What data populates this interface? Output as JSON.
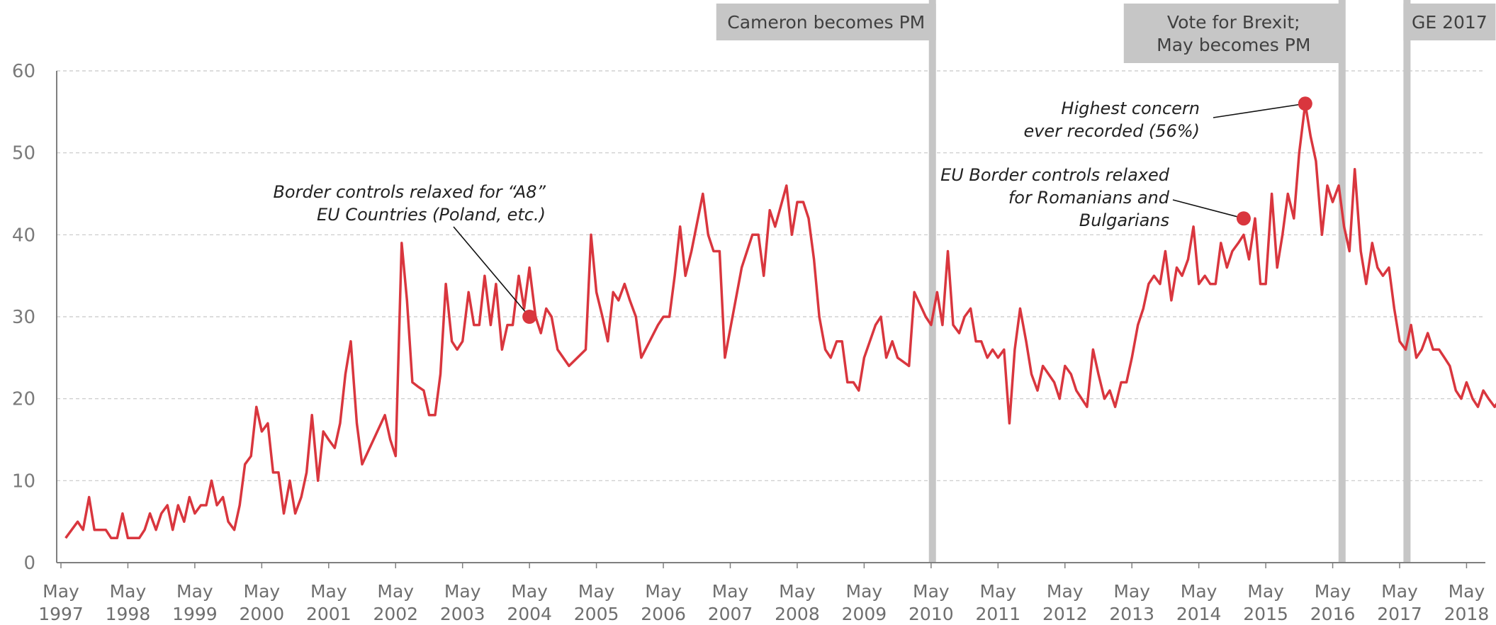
{
  "chart_data": {
    "type": "line",
    "title": "",
    "xlabel": "",
    "ylabel": "",
    "ylim": [
      0,
      60
    ],
    "yticks": [
      0,
      10,
      20,
      30,
      40,
      50,
      60
    ],
    "grid": true,
    "xticks": [
      {
        "top": "May",
        "bottom": "1997",
        "year": 1997.33
      },
      {
        "top": "May",
        "bottom": "1998",
        "year": 1998.33
      },
      {
        "top": "May",
        "bottom": "1999",
        "year": 1999.33
      },
      {
        "top": "May",
        "bottom": "2000",
        "year": 2000.33
      },
      {
        "top": "May",
        "bottom": "2001",
        "year": 2001.33
      },
      {
        "top": "May",
        "bottom": "2002",
        "year": 2002.33
      },
      {
        "top": "May",
        "bottom": "2003",
        "year": 2003.33
      },
      {
        "top": "May",
        "bottom": "2004",
        "year": 2004.33
      },
      {
        "top": "May",
        "bottom": "2005",
        "year": 2005.33
      },
      {
        "top": "May",
        "bottom": "2006",
        "year": 2006.33
      },
      {
        "top": "May",
        "bottom": "2007",
        "year": 2007.33
      },
      {
        "top": "May",
        "bottom": "2008",
        "year": 2008.33
      },
      {
        "top": "May",
        "bottom": "2009",
        "year": 2009.33
      },
      {
        "top": "May",
        "bottom": "2010",
        "year": 2010.33
      },
      {
        "top": "May",
        "bottom": "2011",
        "year": 2011.33
      },
      {
        "top": "May",
        "bottom": "2012",
        "year": 2012.33
      },
      {
        "top": "May",
        "bottom": "2013",
        "year": 2013.33
      },
      {
        "top": "May",
        "bottom": "2014",
        "year": 2014.33
      },
      {
        "top": "May",
        "bottom": "2015",
        "year": 2015.33
      },
      {
        "top": "May",
        "bottom": "2016",
        "year": 2016.33
      },
      {
        "top": "May",
        "bottom": "2017",
        "year": 2017.33
      },
      {
        "top": "May",
        "bottom": "2018",
        "year": 2018.33
      }
    ],
    "series": [
      {
        "color": "#d9363e",
        "values": [
          [
            1997.4,
            3
          ],
          [
            1997.58,
            5
          ],
          [
            1997.66,
            4
          ],
          [
            1997.75,
            8
          ],
          [
            1997.83,
            4
          ],
          [
            1997.92,
            4
          ],
          [
            1998.0,
            4
          ],
          [
            1998.08,
            3
          ],
          [
            1998.17,
            3
          ],
          [
            1998.25,
            6
          ],
          [
            1998.33,
            3
          ],
          [
            1998.42,
            3
          ],
          [
            1998.5,
            3
          ],
          [
            1998.58,
            4
          ],
          [
            1998.66,
            6
          ],
          [
            1998.75,
            4
          ],
          [
            1998.83,
            6
          ],
          [
            1998.92,
            7
          ],
          [
            1999.0,
            4
          ],
          [
            1999.08,
            7
          ],
          [
            1999.17,
            5
          ],
          [
            1999.25,
            8
          ],
          [
            1999.33,
            6
          ],
          [
            1999.42,
            7
          ],
          [
            1999.5,
            7
          ],
          [
            1999.58,
            10
          ],
          [
            1999.66,
            7
          ],
          [
            1999.75,
            8
          ],
          [
            1999.83,
            5
          ],
          [
            1999.92,
            4
          ],
          [
            2000.0,
            7
          ],
          [
            2000.08,
            12
          ],
          [
            2000.17,
            13
          ],
          [
            2000.25,
            19
          ],
          [
            2000.33,
            16
          ],
          [
            2000.42,
            17
          ],
          [
            2000.5,
            11
          ],
          [
            2000.58,
            11
          ],
          [
            2000.66,
            6
          ],
          [
            2000.75,
            10
          ],
          [
            2000.83,
            6
          ],
          [
            2000.92,
            8
          ],
          [
            2001.0,
            11
          ],
          [
            2001.08,
            18
          ],
          [
            2001.17,
            10
          ],
          [
            2001.25,
            16
          ],
          [
            2001.33,
            15
          ],
          [
            2001.42,
            14
          ],
          [
            2001.5,
            17
          ],
          [
            2001.58,
            23
          ],
          [
            2001.66,
            27
          ],
          [
            2001.75,
            17
          ],
          [
            2001.83,
            12
          ],
          [
            2002.17,
            18
          ],
          [
            2002.25,
            15
          ],
          [
            2002.33,
            13
          ],
          [
            2002.42,
            39
          ],
          [
            2002.5,
            32
          ],
          [
            2002.58,
            22
          ],
          [
            2002.66,
            21.5
          ],
          [
            2002.75,
            21
          ],
          [
            2002.83,
            18
          ],
          [
            2002.92,
            18
          ],
          [
            2003.0,
            23
          ],
          [
            2003.08,
            34
          ],
          [
            2003.17,
            27
          ],
          [
            2003.25,
            26
          ],
          [
            2003.33,
            27
          ],
          [
            2003.42,
            33
          ],
          [
            2003.5,
            29
          ],
          [
            2003.58,
            29
          ],
          [
            2003.66,
            35
          ],
          [
            2003.75,
            29
          ],
          [
            2003.83,
            34
          ],
          [
            2003.92,
            26
          ],
          [
            2004.0,
            29
          ],
          [
            2004.08,
            29
          ],
          [
            2004.17,
            35
          ],
          [
            2004.25,
            31
          ],
          [
            2004.33,
            36
          ],
          [
            2004.42,
            30
          ],
          [
            2004.5,
            28
          ],
          [
            2004.58,
            31
          ],
          [
            2004.66,
            30
          ],
          [
            2004.75,
            26
          ],
          [
            2004.92,
            24
          ],
          [
            2005.17,
            26
          ],
          [
            2005.25,
            40
          ],
          [
            2005.33,
            33
          ],
          [
            2005.42,
            30
          ],
          [
            2005.5,
            27
          ],
          [
            2005.58,
            33
          ],
          [
            2005.66,
            32
          ],
          [
            2005.75,
            34
          ],
          [
            2005.83,
            32
          ],
          [
            2005.92,
            30
          ],
          [
            2006.0,
            25
          ],
          [
            2006.25,
            29
          ],
          [
            2006.33,
            30
          ],
          [
            2006.42,
            30
          ],
          [
            2006.5,
            35
          ],
          [
            2006.58,
            41
          ],
          [
            2006.66,
            35
          ],
          [
            2006.75,
            38
          ],
          [
            2006.92,
            45
          ],
          [
            2007.0,
            40
          ],
          [
            2007.08,
            38
          ],
          [
            2007.17,
            38
          ],
          [
            2007.25,
            25
          ],
          [
            2007.5,
            36
          ],
          [
            2007.66,
            40
          ],
          [
            2007.75,
            40
          ],
          [
            2007.83,
            35
          ],
          [
            2007.92,
            43
          ],
          [
            2008.0,
            41
          ],
          [
            2008.17,
            46
          ],
          [
            2008.25,
            40
          ],
          [
            2008.33,
            44
          ],
          [
            2008.42,
            44
          ],
          [
            2008.5,
            42
          ],
          [
            2008.58,
            37
          ],
          [
            2008.66,
            30
          ],
          [
            2008.75,
            26
          ],
          [
            2008.83,
            25
          ],
          [
            2008.92,
            27
          ],
          [
            2009.0,
            27
          ],
          [
            2009.08,
            22
          ],
          [
            2009.17,
            22
          ],
          [
            2009.25,
            21
          ],
          [
            2009.33,
            25
          ],
          [
            2009.5,
            29
          ],
          [
            2009.58,
            30
          ],
          [
            2009.66,
            25
          ],
          [
            2009.75,
            27
          ],
          [
            2009.83,
            25
          ],
          [
            2010.0,
            24
          ],
          [
            2010.08,
            33
          ],
          [
            2010.25,
            30
          ],
          [
            2010.33,
            29
          ],
          [
            2010.42,
            33
          ],
          [
            2010.5,
            29
          ],
          [
            2010.58,
            38
          ],
          [
            2010.66,
            29
          ],
          [
            2010.75,
            28
          ],
          [
            2010.83,
            30
          ],
          [
            2010.92,
            31
          ],
          [
            2011.0,
            27
          ],
          [
            2011.08,
            27
          ],
          [
            2011.17,
            25
          ],
          [
            2011.25,
            26
          ],
          [
            2011.33,
            25
          ],
          [
            2011.42,
            26
          ],
          [
            2011.5,
            17
          ],
          [
            2011.58,
            26
          ],
          [
            2011.66,
            31
          ],
          [
            2011.75,
            27
          ],
          [
            2011.83,
            23
          ],
          [
            2011.92,
            21
          ],
          [
            2012.0,
            24
          ],
          [
            2012.17,
            22
          ],
          [
            2012.25,
            20
          ],
          [
            2012.33,
            24
          ],
          [
            2012.42,
            23
          ],
          [
            2012.5,
            21
          ],
          [
            2012.66,
            19
          ],
          [
            2012.75,
            26
          ],
          [
            2012.83,
            23
          ],
          [
            2012.92,
            20
          ],
          [
            2013.0,
            21
          ],
          [
            2013.08,
            19
          ],
          [
            2013.17,
            22
          ],
          [
            2013.25,
            22
          ],
          [
            2013.33,
            25
          ],
          [
            2013.42,
            29
          ],
          [
            2013.5,
            31
          ],
          [
            2013.58,
            34
          ],
          [
            2013.66,
            35
          ],
          [
            2013.75,
            34
          ],
          [
            2013.83,
            38
          ],
          [
            2013.92,
            32
          ],
          [
            2014.0,
            36
          ],
          [
            2014.08,
            35
          ],
          [
            2014.17,
            37
          ],
          [
            2014.25,
            41
          ],
          [
            2014.33,
            34
          ],
          [
            2014.42,
            35
          ],
          [
            2014.5,
            34
          ],
          [
            2014.58,
            34
          ],
          [
            2014.66,
            39
          ],
          [
            2014.75,
            36
          ],
          [
            2014.83,
            38
          ],
          [
            2014.92,
            39
          ],
          [
            2015.0,
            40
          ],
          [
            2015.08,
            37
          ],
          [
            2015.17,
            42
          ],
          [
            2015.25,
            34
          ],
          [
            2015.33,
            34
          ],
          [
            2015.42,
            45
          ],
          [
            2015.5,
            36
          ],
          [
            2015.58,
            40
          ],
          [
            2015.66,
            45
          ],
          [
            2015.75,
            42
          ],
          [
            2015.83,
            50
          ],
          [
            2015.92,
            56
          ],
          [
            2016.0,
            52
          ],
          [
            2016.08,
            49
          ],
          [
            2016.17,
            40
          ],
          [
            2016.25,
            46
          ],
          [
            2016.33,
            44
          ],
          [
            2016.42,
            46
          ],
          [
            2016.5,
            41
          ],
          [
            2016.58,
            38
          ],
          [
            2016.66,
            48
          ],
          [
            2016.75,
            38
          ],
          [
            2016.83,
            34
          ],
          [
            2016.92,
            39
          ],
          [
            2017.0,
            36
          ],
          [
            2017.08,
            35
          ],
          [
            2017.17,
            36
          ],
          [
            2017.25,
            31
          ],
          [
            2017.33,
            27
          ],
          [
            2017.42,
            26
          ],
          [
            2017.5,
            29
          ],
          [
            2017.58,
            25
          ],
          [
            2017.66,
            26
          ],
          [
            2017.75,
            28
          ],
          [
            2017.83,
            26
          ],
          [
            2017.92,
            26
          ],
          [
            2018.0,
            25
          ],
          [
            2018.08,
            24
          ],
          [
            2018.17,
            21
          ],
          [
            2018.25,
            20
          ],
          [
            2018.33,
            22
          ],
          [
            2018.42,
            20
          ],
          [
            2018.5,
            19
          ],
          [
            2018.58,
            21
          ],
          [
            2018.66,
            20
          ],
          [
            2018.75,
            19
          ],
          [
            2018.83,
            20
          ]
        ]
      }
    ],
    "events": [
      {
        "label": "Cameron becomes PM",
        "year": 2010.35
      },
      {
        "label_lines": [
          "Vote for Brexit;",
          "May becomes PM"
        ],
        "year": 2016.47
      },
      {
        "label": "GE 2017",
        "year": 2017.44
      }
    ],
    "annotations": [
      {
        "lines": [
          "Border controls relaxed for “A8”",
          "EU Countries (Poland, etc.)"
        ],
        "point": [
          2004.33,
          30
        ]
      },
      {
        "lines": [
          "EU Border controls relaxed",
          "for Romanians and",
          "Bulgarians"
        ],
        "point": [
          2015.0,
          42
        ]
      },
      {
        "lines": [
          "Highest concern",
          "ever recorded (56%)"
        ],
        "point": [
          2015.92,
          56
        ]
      }
    ]
  }
}
